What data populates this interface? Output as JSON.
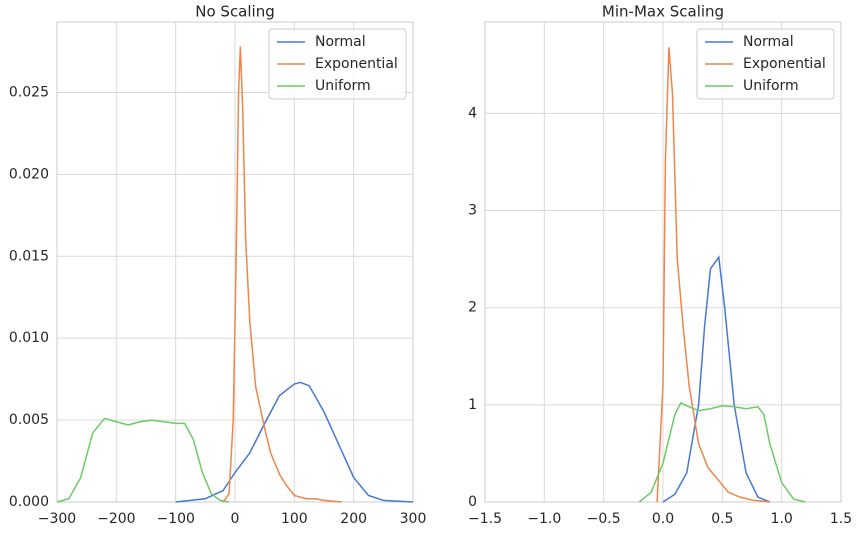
{
  "chart_data": [
    {
      "type": "line",
      "title": "No Scaling",
      "xlim": [
        -300,
        300
      ],
      "xticks": [
        {
          "value": -300,
          "label": "−300"
        },
        {
          "value": -200,
          "label": "−200"
        },
        {
          "value": -100,
          "label": "−100"
        },
        0,
        100,
        200,
        300
      ],
      "ylim": [
        0,
        0.0293
      ],
      "yticks": [
        {
          "value": 0,
          "label": "0.000"
        },
        {
          "value": 0.005,
          "label": "0.005"
        },
        {
          "value": 0.01,
          "label": "0.010"
        },
        {
          "value": 0.015,
          "label": "0.015"
        },
        {
          "value": 0.02,
          "label": "0.020"
        },
        {
          "value": 0.025,
          "label": "0.025"
        }
      ],
      "grid": true,
      "legend": "upper right",
      "series": [
        {
          "name": "Normal",
          "color": "#4878d0",
          "x": [
            -100,
            -50,
            -20,
            0,
            25,
            50,
            75,
            100,
            110,
            125,
            150,
            175,
            200,
            225,
            250,
            300
          ],
          "values": [
            0,
            0.0002,
            0.0007,
            0.0018,
            0.003,
            0.0048,
            0.0065,
            0.0072,
            0.0073,
            0.0071,
            0.0055,
            0.0035,
            0.0015,
            0.0004,
            0.0001,
            0
          ]
        },
        {
          "name": "Exponential",
          "color": "#ee854a",
          "x": [
            -20,
            -10,
            -3,
            2,
            6,
            9,
            13,
            18,
            25,
            35,
            50,
            60,
            75,
            85,
            100,
            120,
            135,
            150,
            180
          ],
          "values": [
            0,
            0.0005,
            0.005,
            0.015,
            0.025,
            0.0278,
            0.024,
            0.016,
            0.011,
            0.007,
            0.0045,
            0.003,
            0.0017,
            0.0011,
            0.0004,
            0.0002,
            0.0002,
            0.0001,
            0
          ]
        },
        {
          "name": "Uniform",
          "color": "#6acc64",
          "x": [
            -300,
            -280,
            -260,
            -240,
            -220,
            -200,
            -180,
            -160,
            -140,
            -120,
            -100,
            -85,
            -70,
            -55,
            -40,
            -25,
            -10
          ],
          "values": [
            0,
            0.0002,
            0.0015,
            0.0042,
            0.0051,
            0.0049,
            0.0047,
            0.0049,
            0.005,
            0.0049,
            0.0048,
            0.0048,
            0.0038,
            0.0018,
            0.0005,
            0.0001,
            0
          ]
        }
      ]
    },
    {
      "type": "line",
      "title": "Min-Max Scaling",
      "xlim": [
        -1.5,
        1.5
      ],
      "xticks": [
        {
          "value": -1.5,
          "label": "−1.5"
        },
        {
          "value": -1.0,
          "label": "−1.0"
        },
        {
          "value": -0.5,
          "label": "−0.5"
        },
        {
          "value": 0,
          "label": "0.0"
        },
        0.5,
        {
          "value": 1.0,
          "label": "1.0"
        },
        1.5
      ],
      "ylim": [
        0,
        4.94
      ],
      "yticks": [
        0,
        1,
        2,
        3,
        4
      ],
      "grid": true,
      "legend": "upper right",
      "series": [
        {
          "name": "Normal",
          "color": "#4878d0",
          "x": [
            0,
            0.1,
            0.2,
            0.3,
            0.35,
            0.4,
            0.47,
            0.52,
            0.6,
            0.7,
            0.8,
            0.9
          ],
          "values": [
            0,
            0.08,
            0.3,
            1.0,
            1.8,
            2.4,
            2.52,
            2.0,
            1.0,
            0.3,
            0.05,
            0
          ]
        },
        {
          "name": "Exponential",
          "color": "#ee854a",
          "x": [
            -0.05,
            0,
            0.02,
            0.05,
            0.08,
            0.12,
            0.17,
            0.22,
            0.3,
            0.38,
            0.45,
            0.55,
            0.65,
            0.75,
            0.9
          ],
          "values": [
            0,
            1.2,
            3.5,
            4.68,
            4.2,
            2.5,
            1.8,
            1.2,
            0.6,
            0.35,
            0.25,
            0.1,
            0.05,
            0.02,
            0
          ]
        },
        {
          "name": "Uniform",
          "color": "#6acc64",
          "x": [
            -0.2,
            -0.1,
            0,
            0.1,
            0.15,
            0.22,
            0.3,
            0.4,
            0.5,
            0.6,
            0.7,
            0.8,
            0.85,
            0.9,
            1.0,
            1.1,
            1.2
          ],
          "values": [
            0,
            0.1,
            0.4,
            0.9,
            1.02,
            0.98,
            0.94,
            0.96,
            0.99,
            0.98,
            0.96,
            0.98,
            0.9,
            0.6,
            0.2,
            0.03,
            0
          ]
        }
      ]
    }
  ]
}
